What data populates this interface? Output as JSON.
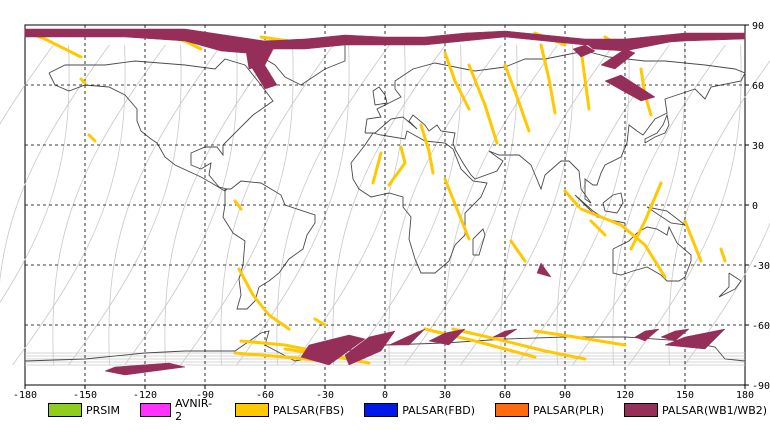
{
  "map": {
    "lon_ticks": [
      "-180",
      "-150",
      "-120",
      "-90",
      "-60",
      "-30",
      "0",
      "30",
      "60",
      "90",
      "120",
      "150",
      "180"
    ],
    "lat_ticks": [
      "90",
      "60",
      "30",
      "0",
      "-30",
      "-60",
      "-90"
    ],
    "lon_range": [
      -180,
      180
    ],
    "lat_range": [
      -90,
      90
    ],
    "grid": "dashed",
    "colors": {
      "land_outline": "#4a4a4a",
      "orbit": "#c8c8c8",
      "grid": "#000000"
    }
  },
  "legend": [
    {
      "label": "PRSIM",
      "color": "#8fce1f"
    },
    {
      "label": "AVNIR-2",
      "color": "#ff33ff"
    },
    {
      "label": "PALSAR(FBS)",
      "color": "#ffc800"
    },
    {
      "label": "PALSAR(FBD)",
      "color": "#0018e8"
    },
    {
      "label": "PALSAR(PLR)",
      "color": "#ff6a10"
    },
    {
      "label": "PALSAR(WB1/WB2)",
      "color": "#962e5a"
    }
  ],
  "chart_data": {
    "type": "map",
    "series": [
      {
        "name": "PALSAR(FBS)",
        "swaths": [
          [
            [
              -178,
              86
            ],
            [
              -170,
              83
            ],
            [
              -160,
              78
            ],
            [
              -152,
              74
            ]
          ],
          [
            [
              -115,
              86
            ],
            [
              -100,
              82
            ],
            [
              -92,
              78
            ]
          ],
          [
            [
              -62,
              84
            ],
            [
              -48,
              82
            ]
          ],
          [
            [
              75,
              86
            ],
            [
              90,
              80
            ]
          ],
          [
            [
              110,
              84
            ],
            [
              120,
              78
            ]
          ],
          [
            [
              -152,
              63
            ],
            [
              -150,
              61
            ]
          ],
          [
            [
              -148,
              35
            ],
            [
              -145,
              32
            ]
          ],
          [
            [
              -75,
              2
            ],
            [
              -72,
              -2
            ]
          ],
          [
            [
              -73,
              -32
            ],
            [
              -66,
              -45
            ],
            [
              -58,
              -55
            ],
            [
              -48,
              -62
            ]
          ],
          [
            [
              -35,
              -57
            ],
            [
              -30,
              -60
            ]
          ],
          [
            [
              -72,
              -68
            ],
            [
              -50,
              -70
            ],
            [
              -30,
              -74
            ],
            [
              -15,
              -78
            ]
          ],
          [
            [
              -75,
              -74
            ],
            [
              -50,
              -76
            ],
            [
              -30,
              -78
            ]
          ],
          [
            [
              -50,
              -72
            ],
            [
              -30,
              -75
            ],
            [
              -8,
              -79
            ]
          ],
          [
            [
              -2,
              26
            ],
            [
              -6,
              11
            ]
          ],
          [
            [
              8,
              29
            ],
            [
              10,
              21
            ],
            [
              2,
              10
            ]
          ],
          [
            [
              18,
              40
            ],
            [
              22,
              27
            ],
            [
              24,
              16
            ]
          ],
          [
            [
              30,
              76
            ],
            [
              35,
              62
            ],
            [
              42,
              48
            ]
          ],
          [
            [
              42,
              70
            ],
            [
              50,
              50
            ],
            [
              56,
              31
            ]
          ],
          [
            [
              60,
              70
            ],
            [
              66,
              54
            ],
            [
              72,
              37
            ]
          ],
          [
            [
              78,
              80
            ],
            [
              82,
              63
            ],
            [
              85,
              46
            ]
          ],
          [
            [
              98,
              78
            ],
            [
              100,
              63
            ],
            [
              102,
              48
            ]
          ],
          [
            [
              128,
              68
            ],
            [
              130,
              55
            ],
            [
              133,
              45
            ]
          ],
          [
            [
              30,
              13
            ],
            [
              42,
              -17
            ]
          ],
          [
            [
              63,
              -18
            ],
            [
              70,
              -28
            ]
          ],
          [
            [
              90,
              7
            ],
            [
              97,
              -1
            ]
          ],
          [
            [
              103,
              -8
            ],
            [
              110,
              -15
            ]
          ],
          [
            [
              98,
              -2
            ],
            [
              118,
              -10
            ],
            [
              130,
              -20
            ],
            [
              140,
              -36
            ]
          ],
          [
            [
              138,
              11
            ],
            [
              130,
              -8
            ],
            [
              123,
              -22
            ]
          ],
          [
            [
              150,
              -8
            ],
            [
              158,
              -28
            ]
          ],
          [
            [
              168,
              -22
            ],
            [
              170,
              -28
            ]
          ],
          [
            [
              34,
              -62
            ],
            [
              60,
              -68
            ],
            [
              80,
              -73
            ],
            [
              100,
              -77
            ]
          ],
          [
            [
              75,
              -63
            ],
            [
              95,
              -66
            ],
            [
              120,
              -70
            ]
          ],
          [
            [
              20,
              -62
            ],
            [
              45,
              -68
            ],
            [
              75,
              -76
            ]
          ]
        ]
      },
      {
        "name": "PALSAR(WB1/WB2)",
        "regions": [
          [
            [
              -180,
              88
            ],
            [
              -160,
              88
            ],
            [
              -130,
              88
            ],
            [
              -100,
              88
            ],
            [
              -80,
              85
            ],
            [
              -60,
              82
            ],
            [
              -40,
              83
            ],
            [
              -20,
              85
            ],
            [
              0,
              84
            ],
            [
              20,
              84
            ],
            [
              40,
              86
            ],
            [
              60,
              87
            ],
            [
              80,
              85
            ],
            [
              100,
              83
            ],
            [
              120,
              83
            ],
            [
              150,
              86
            ],
            [
              180,
              86
            ],
            [
              180,
              83
            ],
            [
              150,
              82
            ],
            [
              120,
              80
            ],
            [
              100,
              80
            ],
            [
              80,
              82
            ],
            [
              60,
              84
            ],
            [
              40,
              82
            ],
            [
              20,
              80
            ],
            [
              0,
              80
            ],
            [
              -20,
              80
            ],
            [
              -40,
              78
            ],
            [
              -58,
              78
            ],
            [
              -70,
              76
            ],
            [
              -82,
              77
            ],
            [
              -100,
              82
            ],
            [
              -130,
              84
            ],
            [
              -160,
              84
            ],
            [
              -180,
              84
            ]
          ],
          [
            [
              -70,
              80
            ],
            [
              -55,
              80
            ],
            [
              -60,
              70
            ],
            [
              -68,
              68
            ]
          ],
          [
            [
              -68,
              71
            ],
            [
              -62,
              73
            ],
            [
              -54,
              60
            ],
            [
              -60,
              58
            ]
          ],
          [
            [
              150,
              83
            ],
            [
              110,
              82
            ],
            [
              98,
              83
            ],
            [
              104,
              78
            ],
            [
              120,
              77
            ]
          ],
          [
            [
              120,
              78
            ],
            [
              108,
              70
            ],
            [
              115,
              68
            ],
            [
              125,
              76
            ]
          ],
          [
            [
              118,
              65
            ],
            [
              110,
              62
            ],
            [
              128,
              52
            ],
            [
              135,
              54
            ]
          ],
          [
            [
              100,
              80
            ],
            [
              94,
              78
            ],
            [
              98,
              74
            ],
            [
              105,
              77
            ]
          ],
          [
            [
              76,
              -34
            ],
            [
              78,
              -29
            ],
            [
              83,
              -36
            ]
          ],
          [
            [
              -130,
              -85
            ],
            [
              -140,
              -83
            ],
            [
              -135,
              -81
            ],
            [
              -108,
              -79
            ],
            [
              -100,
              -81
            ]
          ],
          [
            [
              -38,
              -70
            ],
            [
              -18,
              -65
            ],
            [
              -10,
              -67
            ],
            [
              -28,
              -80
            ],
            [
              -42,
              -76
            ]
          ],
          [
            [
              -8,
              -66
            ],
            [
              5,
              -63
            ],
            [
              -2,
              -73
            ],
            [
              -18,
              -80
            ],
            [
              -20,
              -75
            ]
          ],
          [
            [
              15,
              -64
            ],
            [
              20,
              -62
            ],
            [
              12,
              -70
            ],
            [
              2,
              -70
            ]
          ],
          [
            [
              30,
              -64
            ],
            [
              40,
              -62
            ],
            [
              32,
              -70
            ],
            [
              22,
              -68
            ]
          ],
          [
            [
              60,
              -63
            ],
            [
              66,
              -62
            ],
            [
              60,
              -66
            ],
            [
              54,
              -66
            ]
          ],
          [
            [
              130,
              -63
            ],
            [
              137,
              -62
            ],
            [
              130,
              -68
            ],
            [
              125,
              -66
            ]
          ],
          [
            [
              145,
              -63
            ],
            [
              152,
              -62
            ],
            [
              145,
              -68
            ],
            [
              138,
              -66
            ]
          ],
          [
            [
              150,
              -66
            ],
            [
              170,
              -62
            ],
            [
              160,
              -72
            ],
            [
              140,
              -70
            ]
          ]
        ]
      }
    ]
  }
}
